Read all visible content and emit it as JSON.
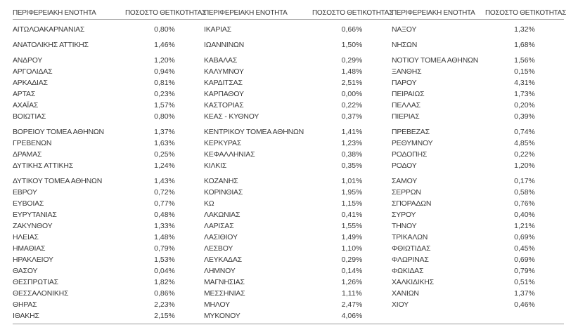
{
  "table": {
    "header_region": "ΠΕΡΙΦΕΡΕΙΑΚΗ ΕΝΟΤΗΤΑ",
    "header_value": "ΠΟΣΟΣΤΟ ΘΕΤΙΚΟΤΗΤΑΣ",
    "colors": {
      "text": "#3a3a3a",
      "rule": "#9a9a9a"
    },
    "rows": [
      [
        [
          "ΑΙΤΩΛΟΑΚΑΡΝΑΝΙΑΣ",
          "0,80%"
        ],
        [
          "ΙΚΑΡΙΑΣ",
          "0,66%"
        ],
        [
          "ΝΑΞΟΥ",
          "1,32%"
        ]
      ],
      [
        [
          "ΑΝΑΤΟΛΙΚΗΣ ΑΤΤΙΚΗΣ",
          "1,46%"
        ],
        [
          "ΙΩΑΝΝΙΝΩΝ",
          "1,50%"
        ],
        [
          "ΝΗΣΩΝ",
          "1,68%"
        ]
      ],
      [
        [
          "ΑΝΔΡΟΥ",
          "1,20%"
        ],
        [
          "ΚΑΒΑΛΑΣ",
          "0,29%"
        ],
        [
          "ΝΟΤΙΟΥ ΤΟΜΕΑ ΑΘΗΝΩΝ",
          "1,56%"
        ]
      ],
      [
        [
          "ΑΡΓΟΛΙΔΑΣ",
          "0,94%"
        ],
        [
          "ΚΑΛΥΜΝΟΥ",
          "1,48%"
        ],
        [
          "ΞΑΝΘΗΣ",
          "0,15%"
        ]
      ],
      [
        [
          "ΑΡΚΑΔΙΑΣ",
          "0,81%"
        ],
        [
          "ΚΑΡΔΙΤΣΑΣ",
          "2,51%"
        ],
        [
          "ΠΑΡΟΥ",
          "4,31%"
        ]
      ],
      [
        [
          "ΑΡΤΑΣ",
          "0,23%"
        ],
        [
          "ΚΑΡΠΑΘΟΥ",
          "0,00%"
        ],
        [
          "ΠΕΙΡΑΙΩΣ",
          "1,73%"
        ]
      ],
      [
        [
          "ΑΧΑΪΑΣ",
          "1,57%"
        ],
        [
          "ΚΑΣΤΟΡΙΑΣ",
          "0,22%"
        ],
        [
          "ΠΕΛΛΑΣ",
          "0,20%"
        ]
      ],
      [
        [
          "ΒΟΙΩΤΙΑΣ",
          "0,80%"
        ],
        [
          "ΚΕΑΣ - ΚΥΘΝΟΥ",
          "0,37%"
        ],
        [
          "ΠΙΕΡΙΑΣ",
          "0,39%"
        ]
      ],
      [
        [
          "ΒΟΡΕΙΟΥ ΤΟΜΕΑ ΑΘΗΝΩΝ",
          "1,37%"
        ],
        [
          "ΚΕΝΤΡΙΚΟΥ ΤΟΜΕΑ ΑΘΗΝΩΝ",
          "1,41%"
        ],
        [
          "ΠΡΕΒΕΖΑΣ",
          "0,74%"
        ]
      ],
      [
        [
          "ΓΡΕΒΕΝΩΝ",
          "1,63%"
        ],
        [
          "ΚΕΡΚΥΡΑΣ",
          "1,23%"
        ],
        [
          "ΡΕΘΥΜΝΟΥ",
          "4,85%"
        ]
      ],
      [
        [
          "ΔΡΑΜΑΣ",
          "0,25%"
        ],
        [
          "ΚΕΦΑΛΛΗΝΙΑΣ",
          "0,38%"
        ],
        [
          "ΡΟΔΟΠΗΣ",
          "0,22%"
        ]
      ],
      [
        [
          "ΔΥΤΙΚΗΣ ΑΤΤΙΚΗΣ",
          "1,24%"
        ],
        [
          "ΚΙΛΚΙΣ",
          "0,35%"
        ],
        [
          "ΡΟΔΟΥ",
          "1,20%"
        ]
      ],
      [
        [
          "ΔΥΤΙΚΟΥ ΤΟΜΕΑ ΑΘΗΝΩΝ",
          "1,43%"
        ],
        [
          "ΚΟΖΑΝΗΣ",
          "1,01%"
        ],
        [
          "ΣΑΜΟΥ",
          "0,17%"
        ]
      ],
      [
        [
          "ΕΒΡΟΥ",
          "0,72%"
        ],
        [
          "ΚΟΡΙΝΘΙΑΣ",
          "1,95%"
        ],
        [
          "ΣΕΡΡΩΝ",
          "0,58%"
        ]
      ],
      [
        [
          "ΕΥΒΟΙΑΣ",
          "0,77%"
        ],
        [
          "ΚΩ",
          "1,15%"
        ],
        [
          "ΣΠΟΡΑΔΩΝ",
          "0,76%"
        ]
      ],
      [
        [
          "ΕΥΡΥΤΑΝΙΑΣ",
          "0,48%"
        ],
        [
          "ΛΑΚΩΝΙΑΣ",
          "0,41%"
        ],
        [
          "ΣΥΡΟΥ",
          "0,40%"
        ]
      ],
      [
        [
          "ΖΑΚΥΝΘΟΥ",
          "1,33%"
        ],
        [
          "ΛΑΡΙΣΑΣ",
          "1,55%"
        ],
        [
          "ΤΗΝΟΥ",
          "1,21%"
        ]
      ],
      [
        [
          "ΗΛΕΙΑΣ",
          "1,48%"
        ],
        [
          "ΛΑΣΙΘΙΟΥ",
          "1,49%"
        ],
        [
          "ΤΡΙΚΑΛΩΝ",
          "0,69%"
        ]
      ],
      [
        [
          "ΗΜΑΘΙΑΣ",
          "0,79%"
        ],
        [
          "ΛΕΣΒΟΥ",
          "1,10%"
        ],
        [
          "ΦΘΙΩΤΙΔΑΣ",
          "0,45%"
        ]
      ],
      [
        [
          "ΗΡΑΚΛΕΙΟΥ",
          "1,53%"
        ],
        [
          "ΛΕΥΚΑΔΑΣ",
          "0,29%"
        ],
        [
          "ΦΛΩΡΙΝΑΣ",
          "0,69%"
        ]
      ],
      [
        [
          "ΘΑΣΟΥ",
          "0,04%"
        ],
        [
          "ΛΗΜΝΟΥ",
          "0,14%"
        ],
        [
          "ΦΩΚΙΔΑΣ",
          "0,79%"
        ]
      ],
      [
        [
          "ΘΕΣΠΡΩΤΙΑΣ",
          "1,82%"
        ],
        [
          "ΜΑΓΝΗΣΙΑΣ",
          "1,26%"
        ],
        [
          "ΧΑΛΚΙΔΙΚΗΣ",
          "0,51%"
        ]
      ],
      [
        [
          "ΘΕΣΣΑΛΟΝΙΚΗΣ",
          "0,86%"
        ],
        [
          "ΜΕΣΣΗΝΙΑΣ",
          "1,11%"
        ],
        [
          "ΧΑΝΙΩΝ",
          "1,37%"
        ]
      ],
      [
        [
          "ΘΗΡΑΣ",
          "2,23%"
        ],
        [
          "ΜΗΛΟΥ",
          "2,47%"
        ],
        [
          "ΧΙΟΥ",
          "0,46%"
        ]
      ],
      [
        [
          "ΙΘΑΚΗΣ",
          "2,15%"
        ],
        [
          "ΜΥΚΟΝΟΥ",
          "4,06%"
        ],
        null
      ]
    ]
  }
}
